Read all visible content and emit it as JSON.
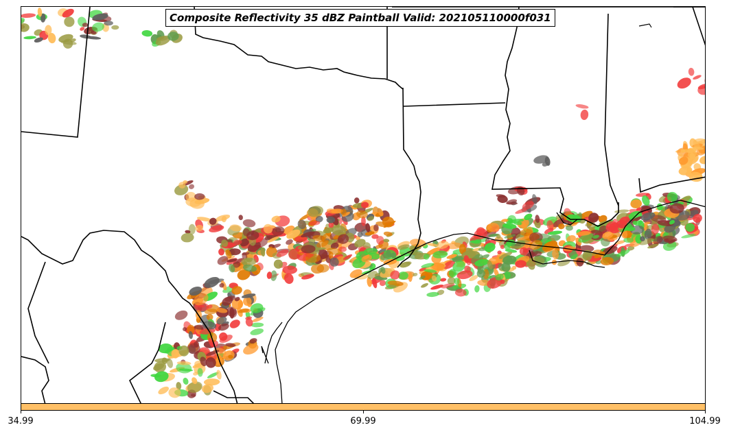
{
  "title": "Composite Reflectivity 35 dBZ Paintball Valid: 202105110000f031",
  "colorbar": {
    "color": "#ffc066",
    "ticks": [
      "34.99",
      "69.99",
      "104.99"
    ]
  },
  "palette": {
    "red": "#f23a3a",
    "orange": "#ff9a2e",
    "light_orange": "#ffbb55",
    "maroon": "#8b3030",
    "green": "#3fd63f",
    "dark_green": "#5e9c4e",
    "olive": "#9a9a40",
    "gray": "#606060",
    "dark_orange": "#e07a00"
  }
}
